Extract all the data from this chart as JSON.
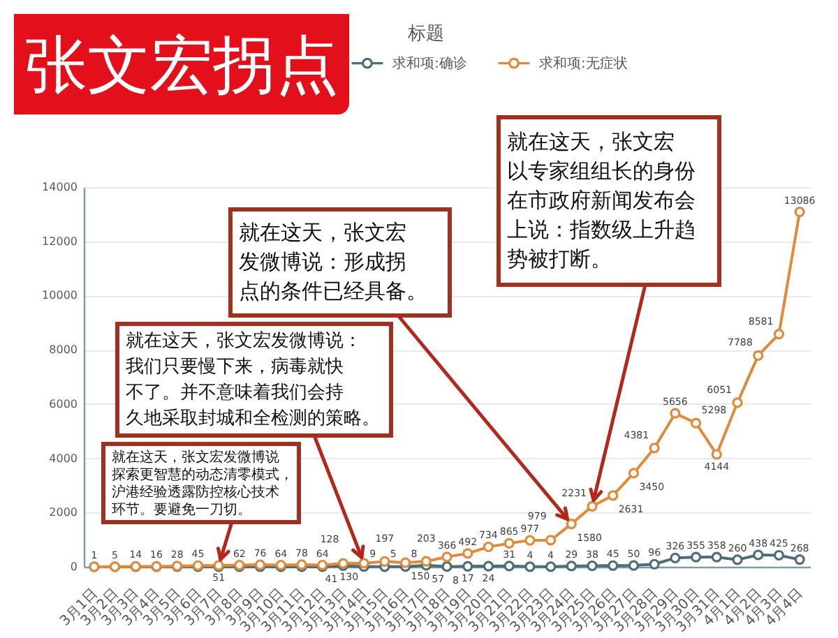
{
  "chart_data": {
    "type": "line",
    "title": "标题",
    "categories": [
      "3月1日",
      "3月2日",
      "3月3日",
      "3月4日",
      "3月5日",
      "3月6日",
      "3月7日",
      "3月8日",
      "3月9日",
      "3月10日",
      "3月11日",
      "3月12日",
      "3月13日",
      "3月14日",
      "3月15日",
      "3月16日",
      "3月17日",
      "3月18日",
      "3月19日",
      "3月20日",
      "3月21日",
      "3月22日",
      "3月23日",
      "3月24日",
      "3月25日",
      "3月26日",
      "3月27日",
      "3月28日",
      "3月29日",
      "3月30日",
      "3月31日",
      "4月1日",
      "4月2日",
      "4月3日",
      "4月4日"
    ],
    "series": [
      {
        "name": "求和项:确诊",
        "color": "#4f6d75",
        "values": [
          0,
          0,
          0,
          0,
          0,
          0,
          0,
          0,
          0,
          0,
          0,
          0,
          41,
          9,
          5,
          8,
          57,
          8,
          17,
          24,
          31,
          4,
          4,
          29,
          38,
          45,
          50,
          96,
          326,
          355,
          358,
          260,
          438,
          425,
          268
        ],
        "value_labels": [
          null,
          null,
          null,
          null,
          null,
          null,
          null,
          null,
          null,
          null,
          null,
          null,
          "41",
          "9",
          "5",
          "8",
          "57",
          "8",
          "17",
          "24",
          "31",
          "4",
          "4",
          "29",
          "38",
          "45",
          "50",
          "96",
          "326",
          "355",
          "358",
          "260",
          "438",
          "425",
          "268"
        ]
      },
      {
        "name": "求和项:无症状",
        "color": "#e08a3c",
        "values": [
          1,
          5,
          14,
          16,
          28,
          45,
          51,
          62,
          76,
          64,
          78,
          64,
          128,
          130,
          197,
          150,
          203,
          366,
          492,
          734,
          865,
          977,
          979,
          1580,
          2231,
          2631,
          3450,
          4381,
          5656,
          5298,
          4144,
          6051,
          7788,
          8581,
          13086
        ],
        "value_labels": [
          "1",
          "5",
          "14",
          "16",
          "28",
          "45",
          "51",
          "62",
          "76",
          "64",
          "78",
          "64",
          "128",
          "130",
          "197",
          "150",
          "203",
          "366",
          "492",
          "734",
          "865",
          "977",
          "979",
          "1580",
          "2231",
          "2631",
          "3450",
          "4381",
          "5656",
          "5298",
          "4144",
          "6051",
          "7788",
          "8581",
          "13086"
        ]
      }
    ],
    "ylim": [
      0,
      14000
    ],
    "yticks": [
      0,
      2000,
      4000,
      6000,
      8000,
      10000,
      12000,
      14000
    ],
    "grid": "y",
    "legend": "top",
    "marker": "circle",
    "annotations": [
      "张文宏拐点",
      {
        "text": "就在这天，张文宏发微博说探索更智慧的动态清零模式，沪港经验透露防控核心技术环节。要避免一刀切。",
        "x": "3月7日",
        "y": 51
      },
      {
        "text": "就在这天，张文宏发微博说：我们只要慢下来，病毒就快不了。并不意味着我们会持久地采取封城和全检测的策略。",
        "x": "3月14日",
        "y": 130
      },
      {
        "text": "就在这天，张文宏发微博说：形成拐点的条件已经具备。",
        "x": "3月24日",
        "y": 1580
      },
      {
        "text": "就在这天，张文宏以专家组组长的身份在市政府新闻发布会上说：指数级上升趋势被打断。",
        "x": "3月25日",
        "y": 2231
      }
    ]
  }
}
